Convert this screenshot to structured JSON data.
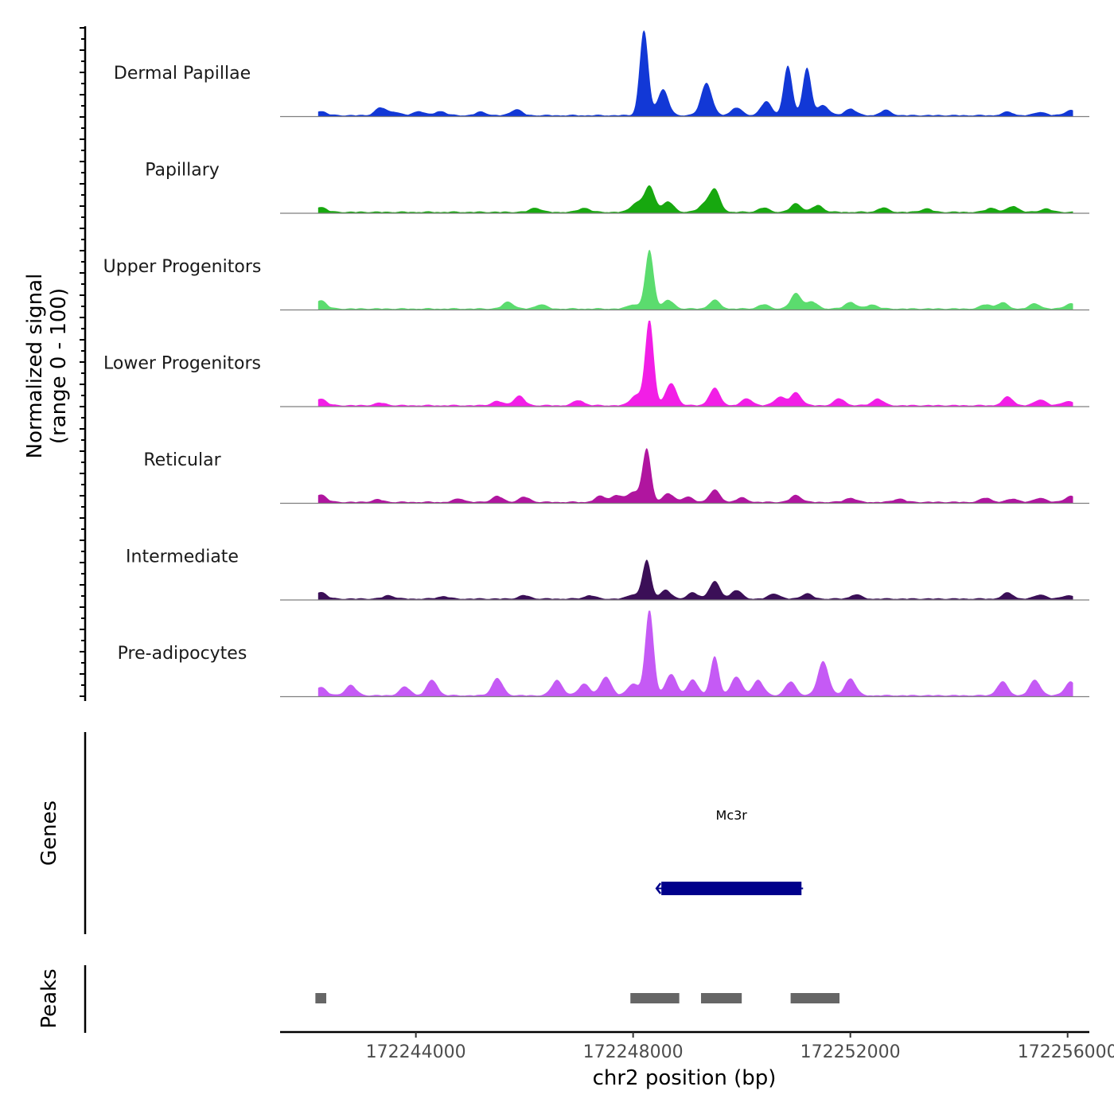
{
  "chart_data": {
    "type": "area",
    "title": "",
    "y_axis_title": [
      "Normalized signal",
      "(range 0 - 100)"
    ],
    "x_axis_title": "chr2 position (bp)",
    "x_range": [
      172241500,
      172256400
    ],
    "x_ticks": [
      172244000,
      172248000,
      172252000,
      172256000
    ],
    "x_tick_labels": [
      "172244000",
      "172248000",
      "172252000",
      "172256000"
    ],
    "signal_range": [
      0,
      100
    ],
    "tracks": [
      {
        "name": "Dermal Papillae",
        "color": "#1238d6",
        "peaks": [
          {
            "x": 172242250,
            "h": 5
          },
          {
            "x": 172243350,
            "h": 9
          },
          {
            "x": 172243600,
            "h": 4
          },
          {
            "x": 172244050,
            "h": 5
          },
          {
            "x": 172244450,
            "h": 5
          },
          {
            "x": 172245200,
            "h": 4
          },
          {
            "x": 172245850,
            "h": 7
          },
          {
            "x": 172248200,
            "h": 100
          },
          {
            "x": 172248550,
            "h": 30
          },
          {
            "x": 172249350,
            "h": 38
          },
          {
            "x": 172249900,
            "h": 9
          },
          {
            "x": 172250450,
            "h": 16
          },
          {
            "x": 172250850,
            "h": 58
          },
          {
            "x": 172251200,
            "h": 55
          },
          {
            "x": 172251500,
            "h": 12
          },
          {
            "x": 172252000,
            "h": 8
          },
          {
            "x": 172252650,
            "h": 6
          },
          {
            "x": 172254900,
            "h": 4
          },
          {
            "x": 172255500,
            "h": 4
          },
          {
            "x": 172256050,
            "h": 6
          }
        ]
      },
      {
        "name": "Papillary",
        "color": "#17a80f",
        "peaks": [
          {
            "x": 172242250,
            "h": 6
          },
          {
            "x": 172246200,
            "h": 5
          },
          {
            "x": 172247100,
            "h": 5
          },
          {
            "x": 172248050,
            "h": 10
          },
          {
            "x": 172248300,
            "h": 30
          },
          {
            "x": 172248650,
            "h": 12
          },
          {
            "x": 172249300,
            "h": 8
          },
          {
            "x": 172249500,
            "h": 26
          },
          {
            "x": 172250400,
            "h": 5
          },
          {
            "x": 172251000,
            "h": 10
          },
          {
            "x": 172251400,
            "h": 8
          },
          {
            "x": 172252600,
            "h": 5
          },
          {
            "x": 172253400,
            "h": 4
          },
          {
            "x": 172254600,
            "h": 5
          },
          {
            "x": 172255000,
            "h": 7
          },
          {
            "x": 172255600,
            "h": 4
          }
        ]
      },
      {
        "name": "Upper Progenitors",
        "color": "#5bdc6e",
        "peaks": [
          {
            "x": 172242250,
            "h": 10
          },
          {
            "x": 172245700,
            "h": 8
          },
          {
            "x": 172246300,
            "h": 5
          },
          {
            "x": 172248000,
            "h": 5
          },
          {
            "x": 172248300,
            "h": 68
          },
          {
            "x": 172248650,
            "h": 10
          },
          {
            "x": 172249500,
            "h": 10
          },
          {
            "x": 172250400,
            "h": 5
          },
          {
            "x": 172251000,
            "h": 18
          },
          {
            "x": 172251300,
            "h": 8
          },
          {
            "x": 172252000,
            "h": 8
          },
          {
            "x": 172252400,
            "h": 5
          },
          {
            "x": 172254500,
            "h": 5
          },
          {
            "x": 172254800,
            "h": 7
          },
          {
            "x": 172255400,
            "h": 6
          },
          {
            "x": 172256050,
            "h": 6
          }
        ]
      },
      {
        "name": "Lower Progenitors",
        "color": "#f21ee6",
        "peaks": [
          {
            "x": 172242250,
            "h": 8
          },
          {
            "x": 172243350,
            "h": 3
          },
          {
            "x": 172245500,
            "h": 5
          },
          {
            "x": 172245900,
            "h": 11
          },
          {
            "x": 172247000,
            "h": 6
          },
          {
            "x": 172248050,
            "h": 12
          },
          {
            "x": 172248300,
            "h": 100
          },
          {
            "x": 172248700,
            "h": 26
          },
          {
            "x": 172249500,
            "h": 20
          },
          {
            "x": 172250100,
            "h": 8
          },
          {
            "x": 172250700,
            "h": 10
          },
          {
            "x": 172251000,
            "h": 15
          },
          {
            "x": 172251800,
            "h": 8
          },
          {
            "x": 172252500,
            "h": 8
          },
          {
            "x": 172254900,
            "h": 10
          },
          {
            "x": 172255500,
            "h": 7
          },
          {
            "x": 172256000,
            "h": 5
          }
        ]
      },
      {
        "name": "Reticular",
        "color": "#b0159f",
        "peaks": [
          {
            "x": 172242250,
            "h": 9
          },
          {
            "x": 172243300,
            "h": 3
          },
          {
            "x": 172244800,
            "h": 4
          },
          {
            "x": 172245500,
            "h": 7
          },
          {
            "x": 172246000,
            "h": 6
          },
          {
            "x": 172247400,
            "h": 7
          },
          {
            "x": 172247700,
            "h": 8
          },
          {
            "x": 172248000,
            "h": 12
          },
          {
            "x": 172248250,
            "h": 62
          },
          {
            "x": 172248650,
            "h": 10
          },
          {
            "x": 172249000,
            "h": 6
          },
          {
            "x": 172249500,
            "h": 14
          },
          {
            "x": 172250000,
            "h": 5
          },
          {
            "x": 172251000,
            "h": 8
          },
          {
            "x": 172252000,
            "h": 5
          },
          {
            "x": 172252900,
            "h": 4
          },
          {
            "x": 172254500,
            "h": 5
          },
          {
            "x": 172255000,
            "h": 4
          },
          {
            "x": 172255500,
            "h": 5
          },
          {
            "x": 172256050,
            "h": 7
          }
        ]
      },
      {
        "name": "Intermediate",
        "color": "#3b0f57",
        "peaks": [
          {
            "x": 172242250,
            "h": 8
          },
          {
            "x": 172243500,
            "h": 4
          },
          {
            "x": 172244500,
            "h": 3
          },
          {
            "x": 172246000,
            "h": 4
          },
          {
            "x": 172247200,
            "h": 4
          },
          {
            "x": 172248000,
            "h": 5
          },
          {
            "x": 172248250,
            "h": 45
          },
          {
            "x": 172248600,
            "h": 10
          },
          {
            "x": 172249100,
            "h": 7
          },
          {
            "x": 172249500,
            "h": 20
          },
          {
            "x": 172249900,
            "h": 10
          },
          {
            "x": 172250600,
            "h": 6
          },
          {
            "x": 172251200,
            "h": 6
          },
          {
            "x": 172252100,
            "h": 5
          },
          {
            "x": 172254900,
            "h": 7
          },
          {
            "x": 172255500,
            "h": 5
          },
          {
            "x": 172256000,
            "h": 4
          }
        ]
      },
      {
        "name": "Pre-adipocytes",
        "color": "#c55af5",
        "peaks": [
          {
            "x": 172242250,
            "h": 10
          },
          {
            "x": 172242800,
            "h": 12
          },
          {
            "x": 172243800,
            "h": 10
          },
          {
            "x": 172244300,
            "h": 18
          },
          {
            "x": 172245500,
            "h": 20
          },
          {
            "x": 172246600,
            "h": 18
          },
          {
            "x": 172247100,
            "h": 14
          },
          {
            "x": 172247500,
            "h": 22
          },
          {
            "x": 172248000,
            "h": 14
          },
          {
            "x": 172248300,
            "h": 100
          },
          {
            "x": 172248700,
            "h": 25
          },
          {
            "x": 172249100,
            "h": 18
          },
          {
            "x": 172249500,
            "h": 45
          },
          {
            "x": 172249900,
            "h": 22
          },
          {
            "x": 172250300,
            "h": 18
          },
          {
            "x": 172250900,
            "h": 16
          },
          {
            "x": 172251500,
            "h": 40
          },
          {
            "x": 172252000,
            "h": 20
          },
          {
            "x": 172254800,
            "h": 16
          },
          {
            "x": 172255400,
            "h": 18
          },
          {
            "x": 172256050,
            "h": 16
          }
        ]
      }
    ],
    "genes_label": "Genes",
    "genes": [
      {
        "name": "Mc3r",
        "start": 172248520,
        "end": 172251100,
        "strand": "-",
        "color": "#00008b"
      }
    ],
    "peaks_label": "Peaks",
    "peak_regions": [
      {
        "start": 172242150,
        "end": 172242350
      },
      {
        "start": 172247950,
        "end": 172248850
      },
      {
        "start": 172249250,
        "end": 172250000
      },
      {
        "start": 172250900,
        "end": 172251800
      }
    ],
    "peak_color": "#666666"
  }
}
